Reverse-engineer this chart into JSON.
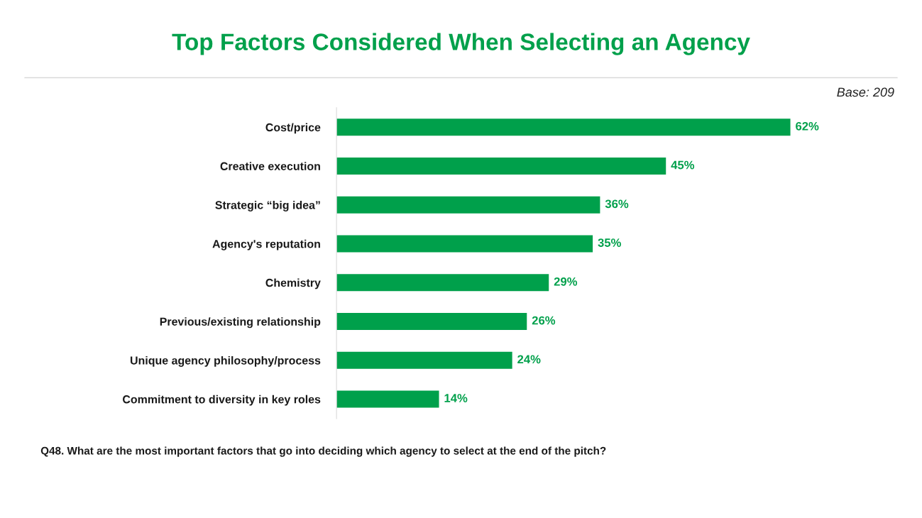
{
  "chart_data": {
    "type": "bar",
    "orientation": "horizontal",
    "title": "Top Factors Considered When Selecting an Agency",
    "categories": [
      "Cost/price",
      "Creative execution",
      "Strategic “big idea”",
      "Agency's reputation",
      "Chemistry",
      "Previous/existing relationship",
      "Unique agency philosophy/process",
      "Commitment to diversity in key roles"
    ],
    "values": [
      62,
      45,
      36,
      35,
      29,
      26,
      24,
      14
    ],
    "value_labels": [
      "62%",
      "45%",
      "36%",
      "35%",
      "29%",
      "26%",
      "24%",
      "14%"
    ],
    "color": "#00a04b",
    "grid": false,
    "legend": false,
    "annotations": [
      "Base: 209",
      "Q48. What are the most important factors that go into deciding which agency to select at the end of the pitch?"
    ]
  }
}
